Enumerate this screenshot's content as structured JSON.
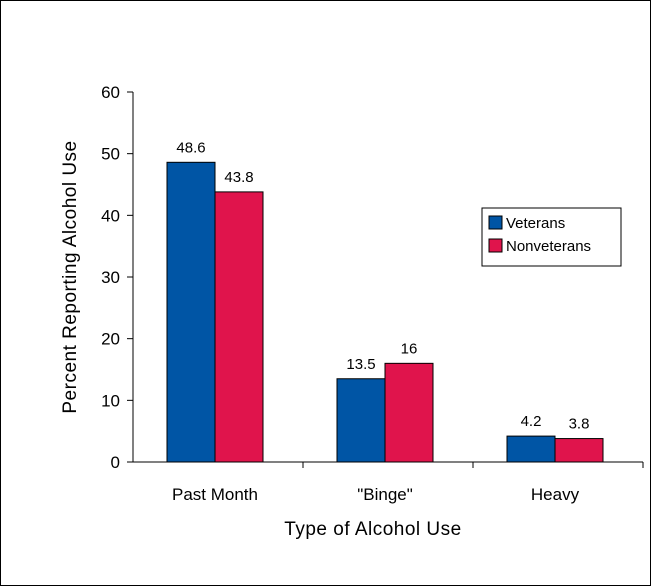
{
  "chart_data": {
    "type": "bar",
    "categories": [
      "Past Month",
      "\"Binge\"",
      "Heavy"
    ],
    "series": [
      {
        "name": "Veterans",
        "values": [
          48.6,
          13.5,
          4.2
        ],
        "color": "#0055A5"
      },
      {
        "name": "Nonveterans",
        "values": [
          43.8,
          16,
          3.8
        ],
        "color": "#E0144C"
      }
    ],
    "data_labels": [
      [
        "48.6",
        "13.5",
        "4.2"
      ],
      [
        "43.8",
        "16",
        "3.8"
      ]
    ],
    "xlabel": "Type of Alcohol Use",
    "ylabel": "Percent Reporting Alcohol Use",
    "ylim": [
      0,
      60
    ],
    "yticks": [
      0,
      10,
      20,
      30,
      40,
      50,
      60
    ],
    "grid": false,
    "legend_position": "right"
  }
}
